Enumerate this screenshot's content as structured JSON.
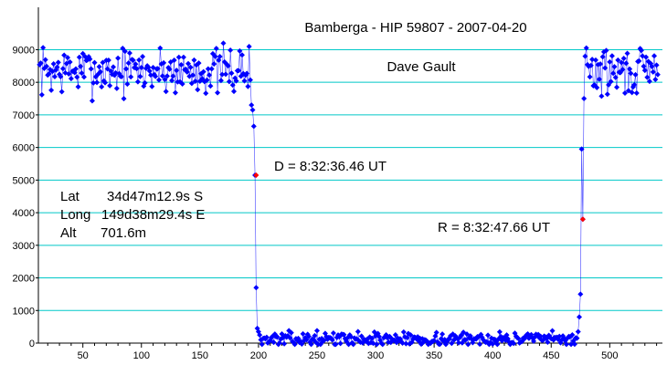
{
  "chart_data": {
    "type": "scatter",
    "title": "Bamberga - HIP 59807 - 2007-04-20",
    "subtitle": "Dave Gault",
    "xlabel": "",
    "ylabel": "",
    "xlim": [
      12,
      545
    ],
    "ylim": [
      0,
      10300
    ],
    "x_ticks": [
      50,
      100,
      150,
      200,
      250,
      300,
      350,
      400,
      450,
      500
    ],
    "y_ticks": [
      0,
      1000,
      2000,
      3000,
      4000,
      5000,
      6000,
      7000,
      8000,
      9000
    ],
    "grid": "horizontal",
    "grid_color": "#00c8c8",
    "series_color": "#0000ff",
    "marker_color_events": "#ff0000",
    "events": [
      {
        "x": 198,
        "y": 5150
      },
      {
        "x": 477,
        "y": 3800
      }
    ],
    "annotations": [
      {
        "id": "d",
        "text": "D = 8:32:36.46 UT"
      },
      {
        "id": "r",
        "text": "R = 8:32:47.66 UT"
      }
    ],
    "location": {
      "lat_label": "Lat",
      "lat_value": "34d47m12.9s S",
      "long_label": "Long",
      "long_value": "149d38m29.4s E",
      "alt_label": "Alt",
      "alt_value": "701.6m"
    },
    "segments": [
      {
        "name": "pre",
        "x_start": 13,
        "x_end": 193,
        "mean": 8350,
        "spread": 900,
        "seed": 7
      },
      {
        "name": "disappearance",
        "x": [
          194,
          195,
          196,
          197,
          198,
          199,
          200,
          201
        ],
        "y": [
          7300,
          7150,
          6650,
          5150,
          1700,
          450,
          350,
          250
        ]
      },
      {
        "name": "occulted",
        "x_start": 202,
        "x_end": 471,
        "mean": 120,
        "spread": 260,
        "seed": 13
      },
      {
        "name": "reappearance",
        "x": [
          472,
          473,
          474,
          475,
          476,
          477,
          478,
          479,
          480
        ],
        "y": [
          150,
          350,
          800,
          1500,
          5950,
          3800,
          7500,
          8800,
          9050
        ]
      },
      {
        "name": "post",
        "x_start": 481,
        "x_end": 541,
        "mean": 8300,
        "spread": 900,
        "seed": 29
      }
    ]
  }
}
